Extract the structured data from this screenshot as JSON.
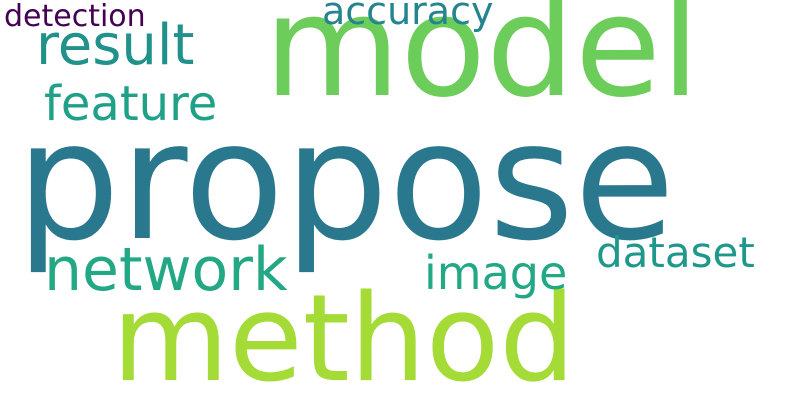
{
  "words": [
    {
      "id": "propose",
      "text": "propose",
      "color": "#2a788e"
    },
    {
      "id": "method",
      "text": "method",
      "color": "#a5db36"
    },
    {
      "id": "model",
      "text": "model",
      "color": "#6ccd5a"
    },
    {
      "id": "network",
      "text": "network",
      "color": "#22a884"
    },
    {
      "id": "result",
      "text": "result",
      "color": "#21918c"
    },
    {
      "id": "feature",
      "text": "feature",
      "color": "#1fa187"
    },
    {
      "id": "image",
      "text": "image",
      "color": "#22a884"
    },
    {
      "id": "dataset",
      "text": "dataset",
      "color": "#1f988b"
    },
    {
      "id": "accuracy",
      "text": "accuracy",
      "color": "#25858e"
    },
    {
      "id": "detection",
      "text": "detection",
      "color": "#440154"
    }
  ]
}
